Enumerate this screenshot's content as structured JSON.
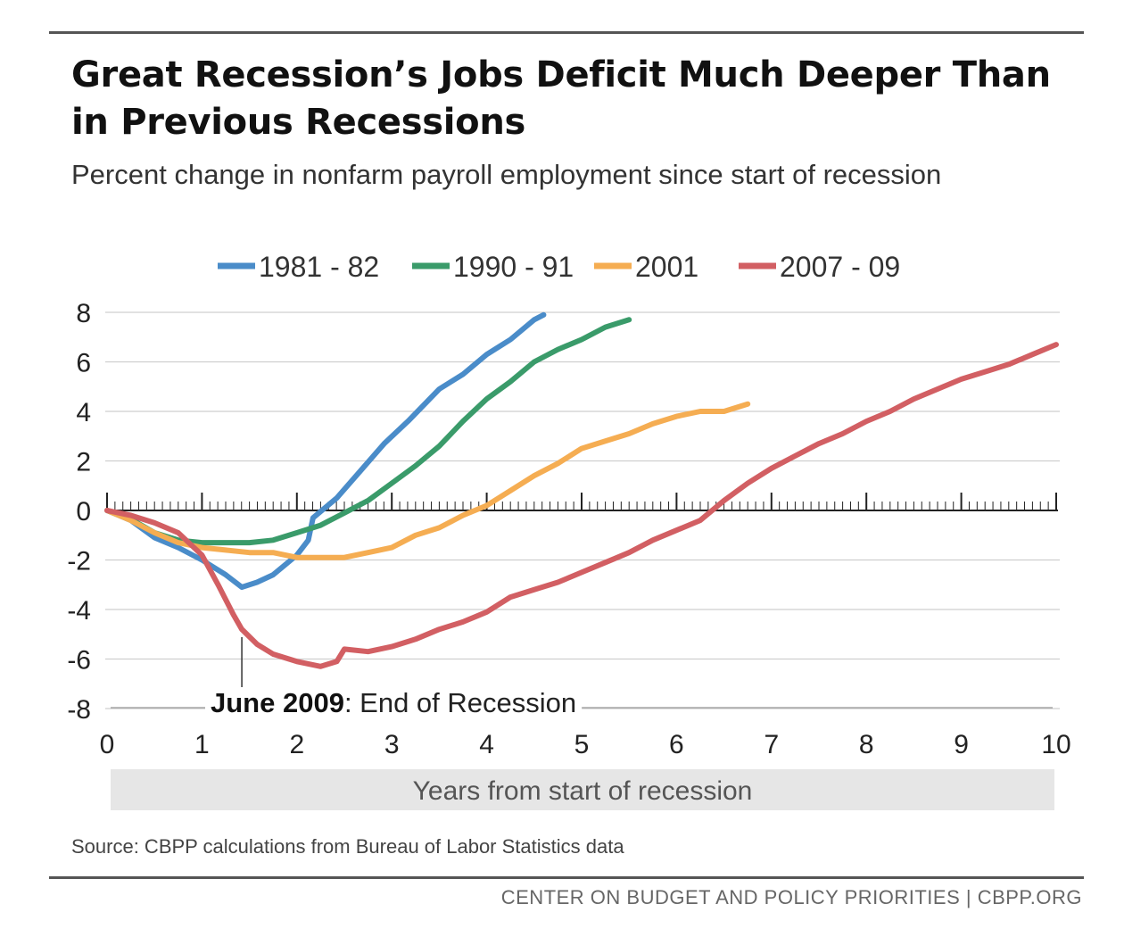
{
  "title": "Great Recession’s Jobs Deficit Much Deeper Than in Previous Recessions",
  "subtitle": "Percent change in nonfarm payroll employment since start of recession",
  "source": "Source: CBPP calculations from Bureau of Labor Statistics data",
  "footer": "CENTER ON BUDGET AND POLICY PRIORITIES | CBPP.ORG",
  "chart_data": {
    "type": "line",
    "title": "",
    "xlabel": "Years from start of recession",
    "ylabel": "",
    "xlim": [
      0,
      10
    ],
    "ylim": [
      -8,
      8
    ],
    "xticks": [
      0,
      1,
      2,
      3,
      4,
      5,
      6,
      7,
      8,
      9,
      10
    ],
    "yticks": [
      8,
      6,
      4,
      2,
      0,
      -2,
      -4,
      -6,
      -8
    ],
    "grid": true,
    "legend_position": "top",
    "annotation": {
      "bold_text": "June 2009",
      "text": ": End of Recession",
      "x": 1.42,
      "y": -4.9
    },
    "series": [
      {
        "name": "1981 - 82",
        "color": "#4a8cc9",
        "points": [
          [
            0,
            0
          ],
          [
            0.25,
            -0.4
          ],
          [
            0.5,
            -1.1
          ],
          [
            0.75,
            -1.5
          ],
          [
            1.0,
            -2.0
          ],
          [
            1.25,
            -2.6
          ],
          [
            1.42,
            -3.1
          ],
          [
            1.58,
            -2.9
          ],
          [
            1.75,
            -2.6
          ],
          [
            2.0,
            -1.8
          ],
          [
            2.12,
            -1.2
          ],
          [
            2.17,
            -0.3
          ],
          [
            2.42,
            0.5
          ],
          [
            2.67,
            1.6
          ],
          [
            2.92,
            2.7
          ],
          [
            3.17,
            3.6
          ],
          [
            3.5,
            4.9
          ],
          [
            3.75,
            5.5
          ],
          [
            4.0,
            6.3
          ],
          [
            4.25,
            6.9
          ],
          [
            4.5,
            7.7
          ],
          [
            4.6,
            7.9
          ]
        ]
      },
      {
        "name": "1990 - 91",
        "color": "#3a9b6a",
        "points": [
          [
            0,
            0
          ],
          [
            0.25,
            -0.35
          ],
          [
            0.5,
            -0.9
          ],
          [
            0.75,
            -1.2
          ],
          [
            1.0,
            -1.3
          ],
          [
            1.25,
            -1.3
          ],
          [
            1.5,
            -1.3
          ],
          [
            1.75,
            -1.2
          ],
          [
            2.0,
            -0.9
          ],
          [
            2.25,
            -0.6
          ],
          [
            2.5,
            -0.1
          ],
          [
            2.75,
            0.4
          ],
          [
            3.0,
            1.1
          ],
          [
            3.25,
            1.8
          ],
          [
            3.5,
            2.6
          ],
          [
            3.75,
            3.6
          ],
          [
            4.0,
            4.5
          ],
          [
            4.25,
            5.2
          ],
          [
            4.5,
            6.0
          ],
          [
            4.75,
            6.5
          ],
          [
            5.0,
            6.9
          ],
          [
            5.25,
            7.4
          ],
          [
            5.5,
            7.7
          ]
        ]
      },
      {
        "name": "2001",
        "color": "#f5ad52",
        "points": [
          [
            0,
            0
          ],
          [
            0.25,
            -0.4
          ],
          [
            0.5,
            -0.9
          ],
          [
            0.75,
            -1.3
          ],
          [
            1.0,
            -1.5
          ],
          [
            1.25,
            -1.6
          ],
          [
            1.5,
            -1.7
          ],
          [
            1.75,
            -1.7
          ],
          [
            2.0,
            -1.9
          ],
          [
            2.25,
            -1.9
          ],
          [
            2.5,
            -1.9
          ],
          [
            2.75,
            -1.7
          ],
          [
            3.0,
            -1.5
          ],
          [
            3.25,
            -1.0
          ],
          [
            3.5,
            -0.7
          ],
          [
            3.75,
            -0.2
          ],
          [
            4.0,
            0.2
          ],
          [
            4.25,
            0.8
          ],
          [
            4.5,
            1.4
          ],
          [
            4.75,
            1.9
          ],
          [
            5.0,
            2.5
          ],
          [
            5.25,
            2.8
          ],
          [
            5.5,
            3.1
          ],
          [
            5.75,
            3.5
          ],
          [
            6.0,
            3.8
          ],
          [
            6.25,
            4.0
          ],
          [
            6.5,
            4.0
          ],
          [
            6.75,
            4.3
          ]
        ]
      },
      {
        "name": "2007 - 09",
        "color": "#d25f63",
        "points": [
          [
            0,
            0
          ],
          [
            0.25,
            -0.2
          ],
          [
            0.5,
            -0.5
          ],
          [
            0.75,
            -0.9
          ],
          [
            1.0,
            -1.8
          ],
          [
            1.17,
            -3.0
          ],
          [
            1.33,
            -4.2
          ],
          [
            1.42,
            -4.8
          ],
          [
            1.58,
            -5.4
          ],
          [
            1.75,
            -5.8
          ],
          [
            2.0,
            -6.1
          ],
          [
            2.25,
            -6.3
          ],
          [
            2.42,
            -6.1
          ],
          [
            2.5,
            -5.6
          ],
          [
            2.75,
            -5.7
          ],
          [
            3.0,
            -5.5
          ],
          [
            3.25,
            -5.2
          ],
          [
            3.5,
            -4.8
          ],
          [
            3.75,
            -4.5
          ],
          [
            4.0,
            -4.1
          ],
          [
            4.25,
            -3.5
          ],
          [
            4.5,
            -3.2
          ],
          [
            4.75,
            -2.9
          ],
          [
            5.0,
            -2.5
          ],
          [
            5.25,
            -2.1
          ],
          [
            5.5,
            -1.7
          ],
          [
            5.75,
            -1.2
          ],
          [
            6.0,
            -0.8
          ],
          [
            6.25,
            -0.4
          ],
          [
            6.5,
            0.4
          ],
          [
            6.75,
            1.1
          ],
          [
            7.0,
            1.7
          ],
          [
            7.25,
            2.2
          ],
          [
            7.5,
            2.7
          ],
          [
            7.75,
            3.1
          ],
          [
            8.0,
            3.6
          ],
          [
            8.25,
            4.0
          ],
          [
            8.5,
            4.5
          ],
          [
            8.75,
            4.9
          ],
          [
            9.0,
            5.3
          ],
          [
            9.25,
            5.6
          ],
          [
            9.5,
            5.9
          ],
          [
            9.75,
            6.3
          ],
          [
            10.0,
            6.7
          ]
        ]
      }
    ]
  }
}
